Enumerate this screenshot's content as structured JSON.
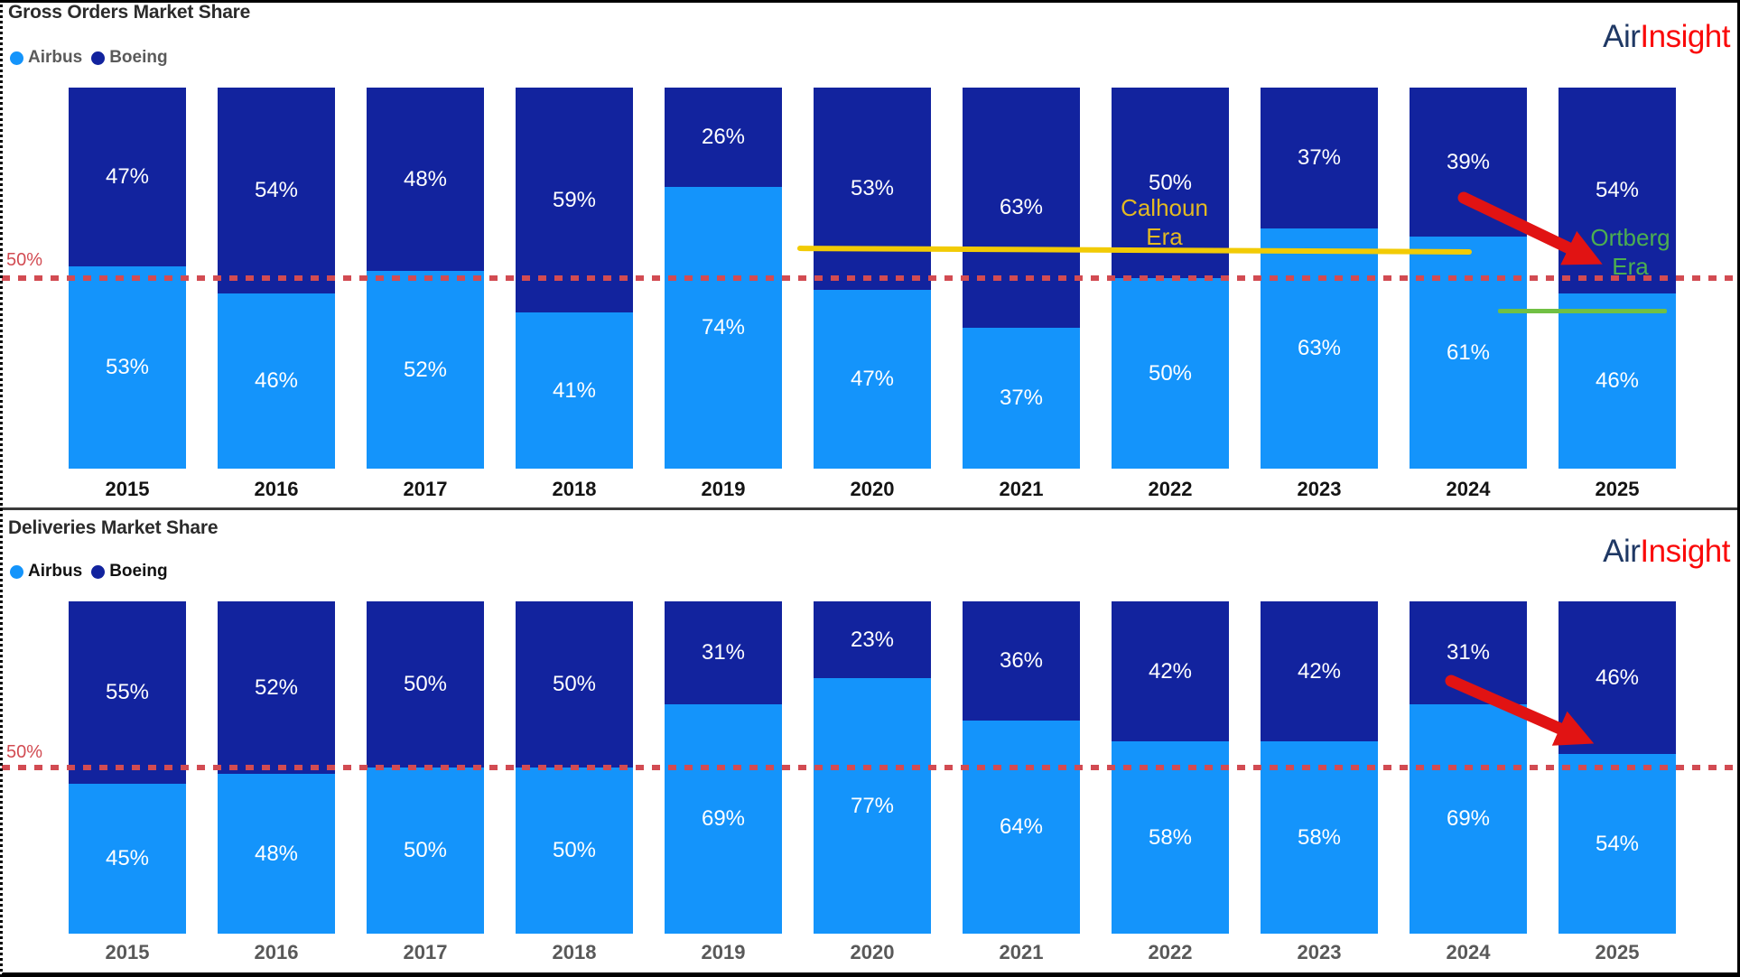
{
  "logo": {
    "part1": "Air",
    "part2": "Insight",
    "part1_color": "#1F3864",
    "part2_color": "#FA0A0A"
  },
  "colors": {
    "airbus": "#1494FB",
    "boeing": "#12239E",
    "ref_line_red": "#D24B52",
    "arrow_red": "#E11313",
    "calhoun_yellow_line": "#F2CB05",
    "calhoun_yellow_text": "#E3B922",
    "ortberg_green_line": "#71C044",
    "ortberg_green_text": "#4CAF50"
  },
  "chart_data": [
    {
      "type": "bar",
      "subtype": "stacked-100-percent",
      "title": "Gross Orders Market Share",
      "categories": [
        "2015",
        "2016",
        "2017",
        "2018",
        "2019",
        "2020",
        "2021",
        "2022",
        "2023",
        "2024",
        "2025"
      ],
      "series": [
        {
          "name": "Airbus",
          "color": "#1494FB",
          "values": [
            53,
            46,
            52,
            41,
            74,
            47,
            37,
            50,
            63,
            61,
            46
          ]
        },
        {
          "name": "Boeing",
          "color": "#12239E",
          "values": [
            47,
            54,
            48,
            59,
            26,
            53,
            63,
            50,
            37,
            39,
            54
          ]
        }
      ],
      "ylim": [
        0,
        100
      ],
      "grid": false,
      "legend_position": "top-left",
      "value_label_format": "percent",
      "ref_line": {
        "label": "50%",
        "value": 50,
        "style": "dashed",
        "color": "#D24B52"
      },
      "annotations": [
        {
          "lines": [
            "Calhoun",
            "Era"
          ],
          "color": "#E3B922"
        },
        {
          "lines": [
            "Ortberg",
            "Era"
          ],
          "color": "#4CAF50"
        }
      ]
    },
    {
      "type": "bar",
      "subtype": "stacked-100-percent",
      "title": "Deliveries Market Share",
      "categories": [
        "2015",
        "2016",
        "2017",
        "2018",
        "2019",
        "2020",
        "2021",
        "2022",
        "2023",
        "2024",
        "2025"
      ],
      "series": [
        {
          "name": "Airbus",
          "color": "#1494FB",
          "values": [
            45,
            48,
            50,
            50,
            69,
            77,
            64,
            58,
            58,
            69,
            54
          ]
        },
        {
          "name": "Boeing",
          "color": "#12239E",
          "values": [
            55,
            52,
            50,
            50,
            31,
            23,
            36,
            42,
            42,
            31,
            46
          ]
        }
      ],
      "ylim": [
        0,
        100
      ],
      "grid": false,
      "legend_position": "top-left",
      "value_label_format": "percent",
      "ref_line": {
        "label": "50%",
        "value": 50,
        "style": "dashed",
        "color": "#D24B52"
      },
      "annotations": []
    }
  ]
}
